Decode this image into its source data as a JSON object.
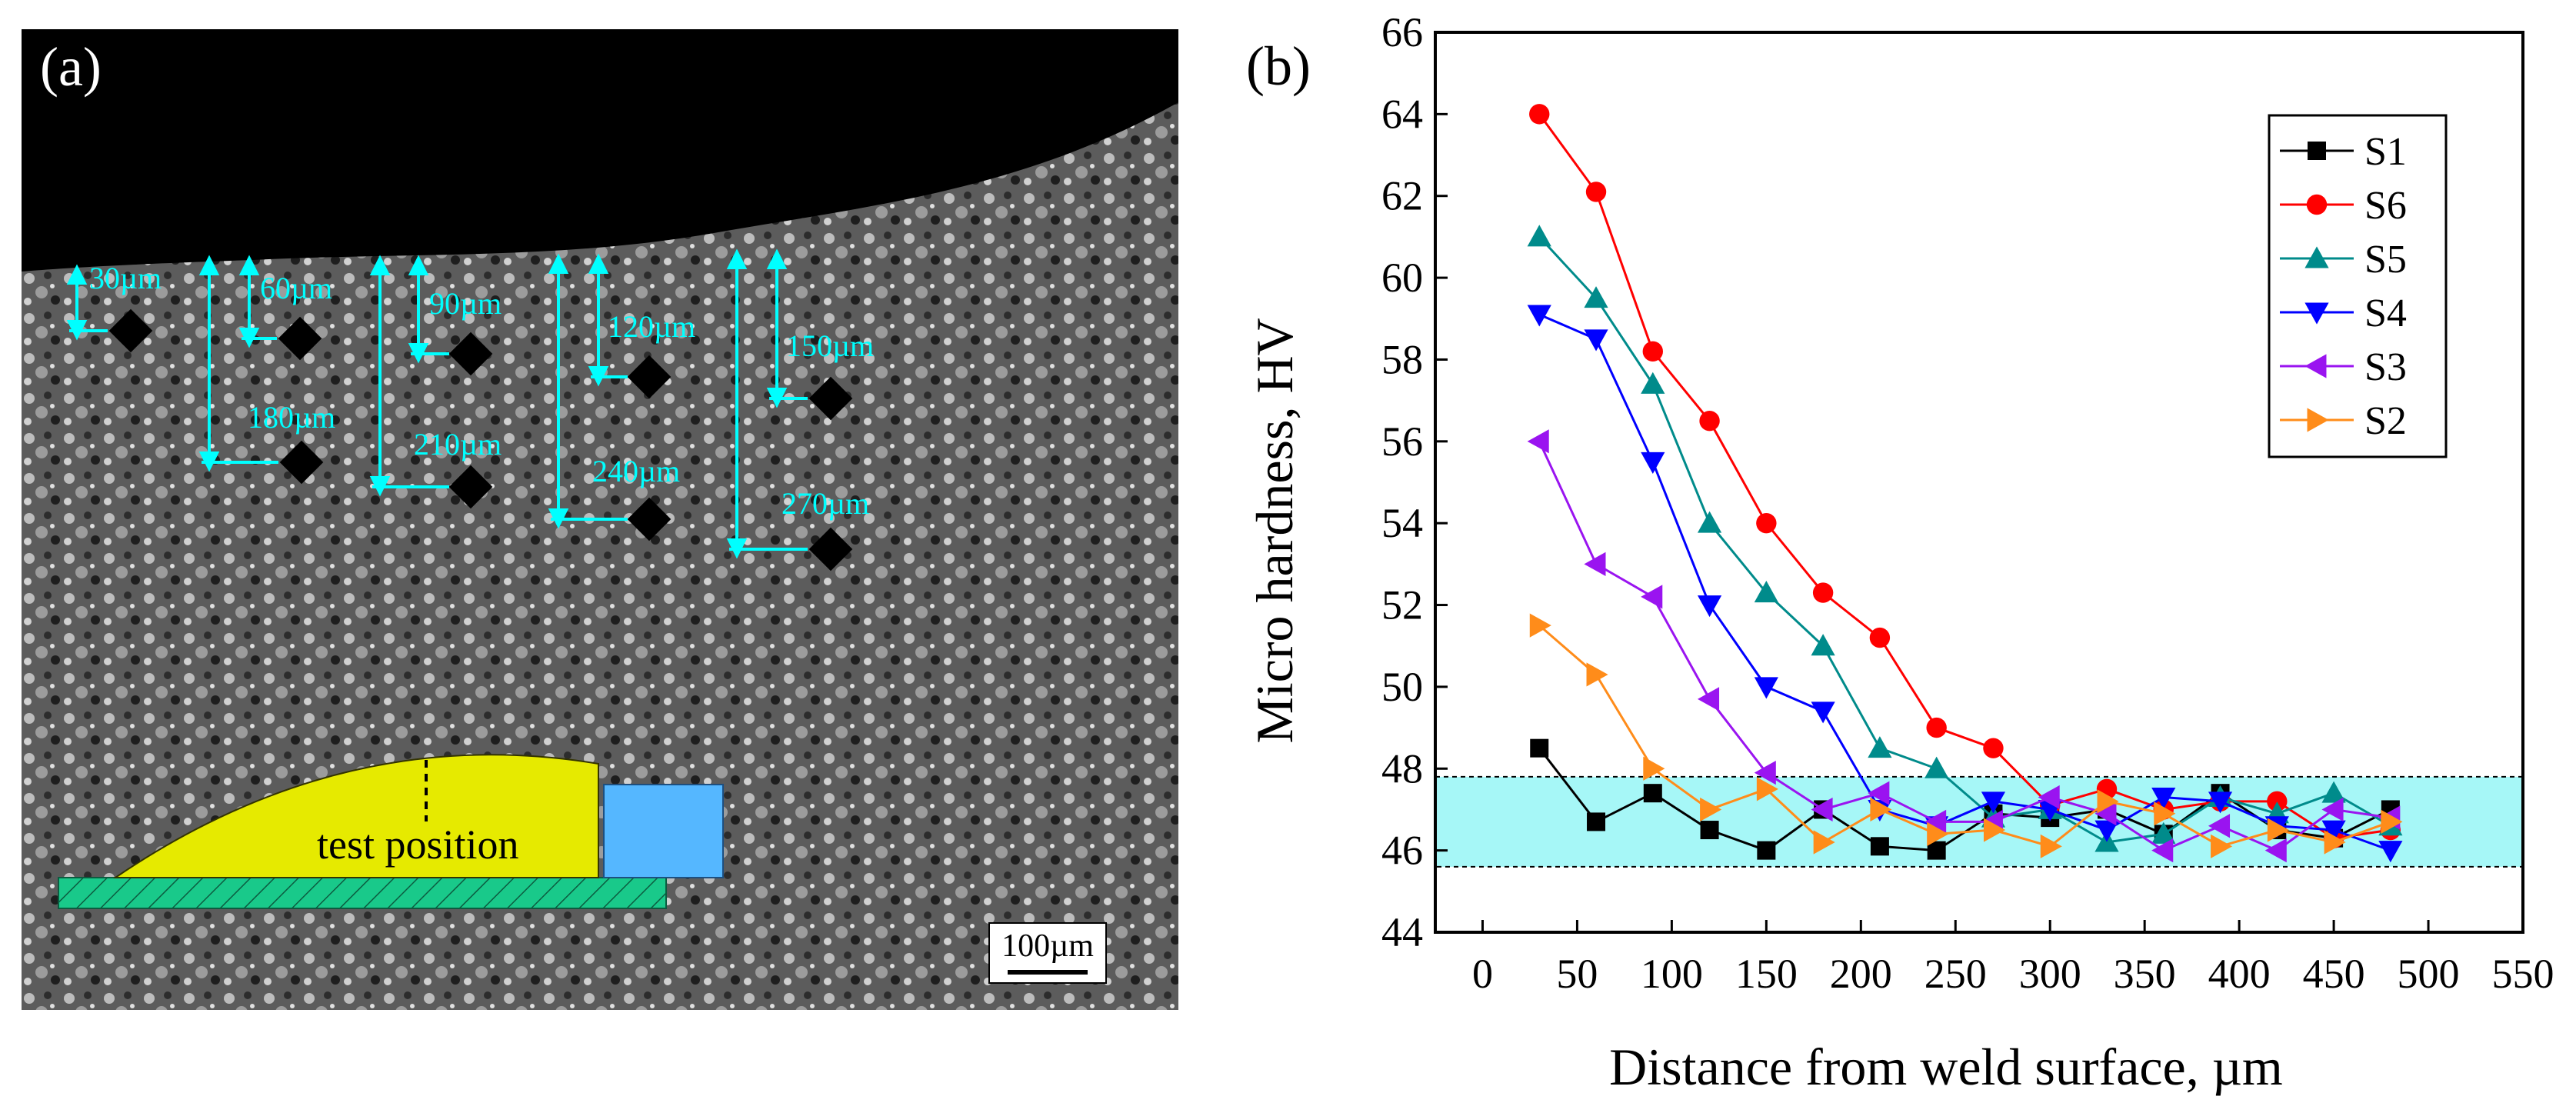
{
  "panel_a": {
    "label": "(a)",
    "depth_labels": [
      "30µm",
      "60µm",
      "90µm",
      "120µm",
      "150µm",
      "180µm",
      "210µm",
      "240µm",
      "270µm"
    ],
    "schematic_label": "test position",
    "scale_bar_label": "100µm"
  },
  "panel_b": {
    "label": "(b)"
  },
  "chart_data": {
    "type": "line",
    "title": "",
    "xlabel": "Distance from weld surface, µm",
    "ylabel": "Micro hardness, HV",
    "xlim": [
      -25,
      550
    ],
    "ylim": [
      44,
      66
    ],
    "xticks": [
      0,
      50,
      100,
      150,
      200,
      250,
      300,
      350,
      400,
      450,
      500,
      550
    ],
    "yticks": [
      44,
      46,
      48,
      50,
      52,
      54,
      56,
      58,
      60,
      62,
      64,
      66
    ],
    "band": {
      "y_min": 45.6,
      "y_max": 47.8,
      "color": "#a6f7f7"
    },
    "legend_position": "top-right",
    "x": [
      30,
      60,
      90,
      120,
      150,
      180,
      210,
      240,
      270,
      300,
      330,
      360,
      390,
      420,
      450,
      480
    ],
    "series": [
      {
        "name": "S1",
        "color": "#000000",
        "marker": "square",
        "values": [
          48.5,
          46.7,
          47.4,
          46.5,
          46.0,
          47.0,
          46.1,
          46.0,
          46.9,
          46.8,
          47.0,
          46.4,
          47.4,
          46.5,
          46.3,
          47.0
        ]
      },
      {
        "name": "S6",
        "color": "#ff0000",
        "marker": "circle",
        "values": [
          64.0,
          62.1,
          58.2,
          56.5,
          54.0,
          52.3,
          51.2,
          49.0,
          48.5,
          47.1,
          47.5,
          47.0,
          47.2,
          47.2,
          46.3,
          46.5
        ]
      },
      {
        "name": "S5",
        "color": "#008b8b",
        "marker": "triangle-up",
        "values": [
          61.0,
          59.5,
          57.4,
          54.0,
          52.3,
          51.0,
          48.5,
          48.0,
          46.8,
          47.0,
          46.2,
          46.4,
          47.3,
          46.9,
          47.4,
          46.6
        ]
      },
      {
        "name": "S4",
        "color": "#0000ff",
        "marker": "triangle-down",
        "values": [
          59.1,
          58.5,
          55.5,
          52.0,
          50.0,
          49.4,
          47.0,
          46.6,
          47.2,
          47.0,
          46.5,
          47.3,
          47.2,
          46.6,
          46.5,
          46.0
        ]
      },
      {
        "name": "S3",
        "color": "#9a14f0",
        "marker": "triangle-left",
        "values": [
          56.0,
          53.0,
          52.2,
          49.7,
          47.9,
          47.0,
          47.4,
          46.7,
          46.7,
          47.3,
          46.9,
          46.0,
          46.6,
          46.0,
          47.0,
          46.8
        ]
      },
      {
        "name": "S2",
        "color": "#ff8c1a",
        "marker": "triangle-right",
        "values": [
          51.5,
          50.3,
          48.0,
          47.0,
          47.5,
          46.2,
          47.0,
          46.4,
          46.5,
          46.1,
          47.2,
          46.9,
          46.1,
          46.5,
          46.2,
          46.7
        ]
      }
    ]
  }
}
